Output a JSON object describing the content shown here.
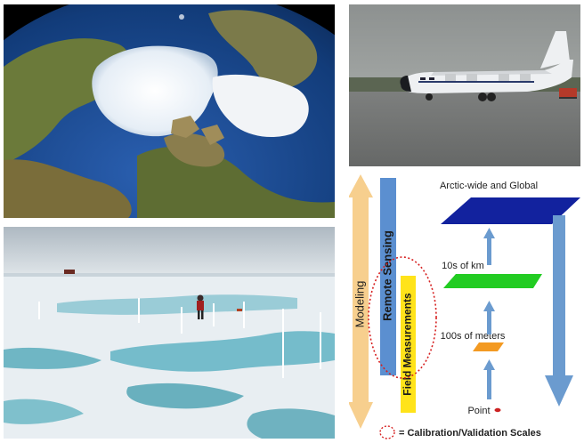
{
  "photos": {
    "globe": {
      "icon": "arctic-globe-satellite-image"
    },
    "aircraft": {
      "icon": "c130-research-aircraft-photo"
    },
    "ice": {
      "icon": "sea-ice-field-camp-photo"
    }
  },
  "diagram": {
    "bars": {
      "modeling": "Modeling",
      "remote_sensing": "Remote Sensing",
      "field_measurements": "Field Measurements"
    },
    "scales": {
      "global": "Arctic-wide and Global",
      "km": "10s of km",
      "meters": "100s of meters",
      "point": "Point"
    },
    "legend": "= Calibration/Validation Scales",
    "colors": {
      "modeling": "#f7cf8e",
      "remote_sensing": "#5b8fd0",
      "field": "#ffe31a",
      "global_plane": "#12229e",
      "km_plane": "#22cc22",
      "meters_plane": "#f39a22",
      "point": "#cc2222",
      "arrow": "#6b9bcf",
      "dotted": "#d62020"
    }
  }
}
